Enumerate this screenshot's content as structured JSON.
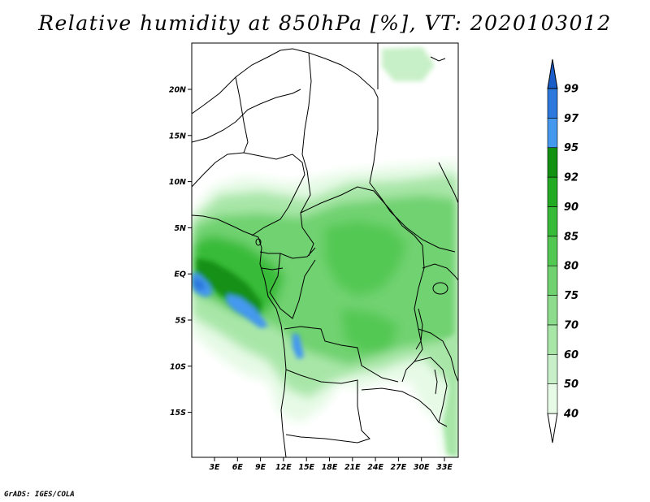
{
  "title": "Relative humidity at 850hPa [%], VT: 2020103012",
  "footer": "GrADS: IGES/COLA",
  "axes": {
    "lon_labels": [
      "3E",
      "6E",
      "9E",
      "12E",
      "15E",
      "18E",
      "21E",
      "24E",
      "27E",
      "30E",
      "33E"
    ],
    "lat_labels": [
      "20N",
      "15N",
      "10N",
      "5N",
      "EQ",
      "5S",
      "10S",
      "15S"
    ]
  },
  "colorbar": {
    "levels": [
      "40",
      "50",
      "60",
      "70",
      "75",
      "80",
      "85",
      "90",
      "92",
      "95",
      "97",
      "99"
    ],
    "colors": [
      "#e6fae6",
      "#c8f0c8",
      "#a8e6a8",
      "#8ddc8d",
      "#6fd26f",
      "#52c852",
      "#38bb38",
      "#22aa22",
      "#129012",
      "#4499ee",
      "#2c78dd",
      "#1a5cc8"
    ],
    "low_end_color": "#ffffff"
  }
}
